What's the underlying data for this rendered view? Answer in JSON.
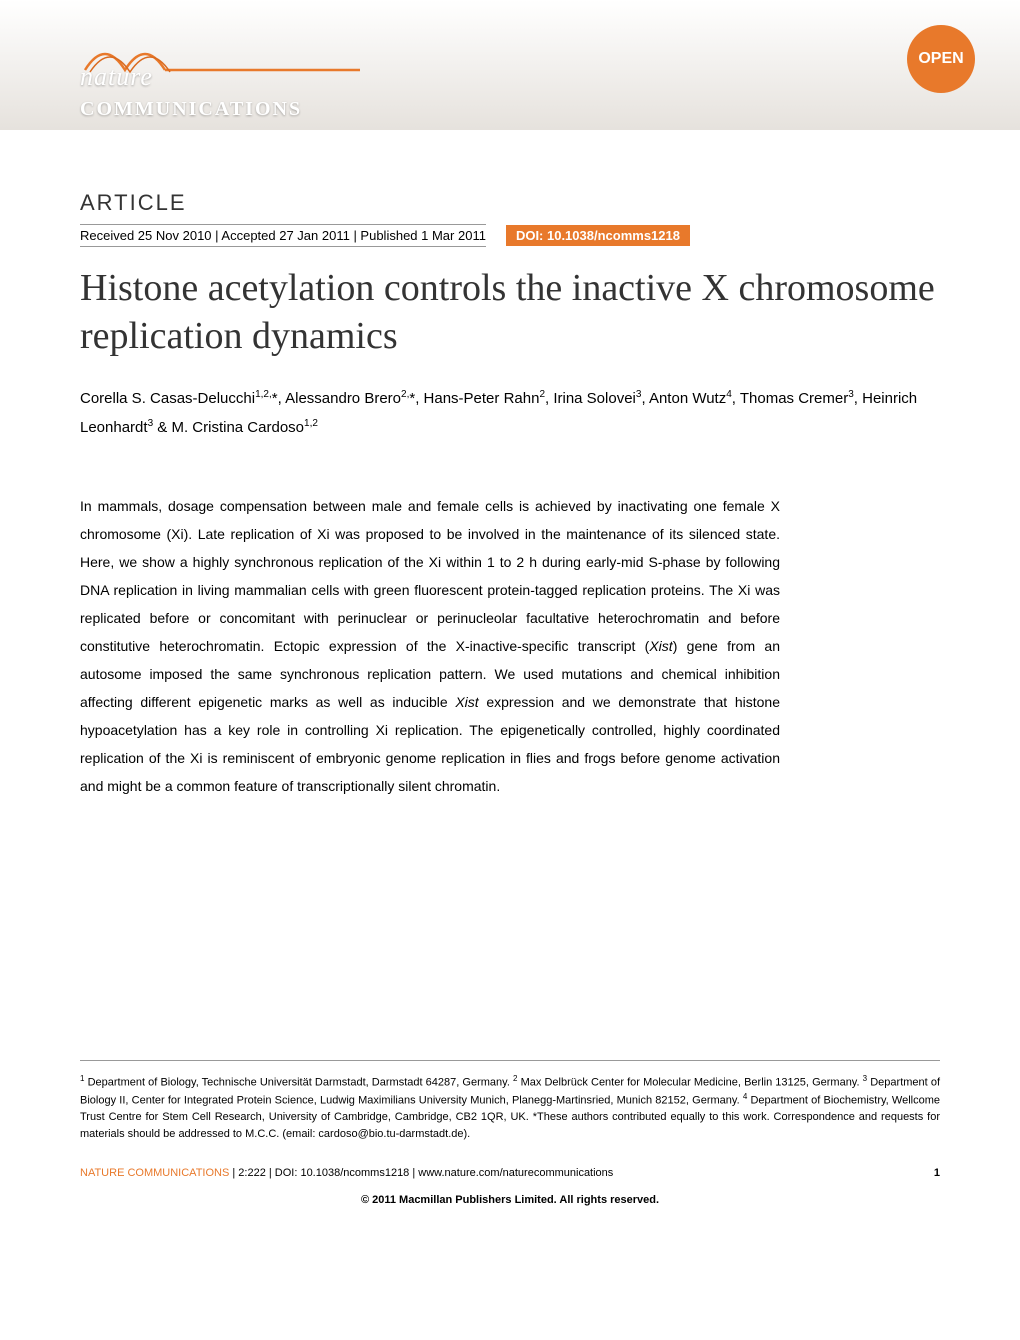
{
  "header": {
    "journal_nature": "nature",
    "journal_communications": "COMMUNICATIONS",
    "open_badge": "OPEN",
    "wave_color": "#e8792b",
    "background_gradient_top": "#ffffff",
    "background_gradient_bottom": "#e6e2dd"
  },
  "article": {
    "label": "ARTICLE",
    "dates": "Received 25 Nov 2010 | Accepted 27 Jan 2011 | Published 1 Mar 2011",
    "doi": "DOI: 10.1038/ncomms1218",
    "title": "Histone acetylation controls the inactive X chromosome replication dynamics",
    "authors_html": "Corella S. Casas-Delucchi<sup>1,2,</sup>*, Alessandro Brero<sup>2,</sup>*, Hans-Peter Rahn<sup>2</sup>, Irina Solovei<sup>3</sup>, Anton Wutz<sup>4</sup>, Thomas Cremer<sup>3</sup>, Heinrich Leonhardt<sup>3</sup> & M. Cristina Cardoso<sup>1,2</sup>",
    "abstract_html": "In mammals, dosage compensation between male and female cells is achieved by inactivating one female X chromosome (Xi). Late replication of Xi was proposed to be involved in the maintenance of its silenced state. Here, we show a highly synchronous replication of the Xi within 1 to 2 h during early-mid S-phase by following DNA replication in living mammalian cells with green fluorescent protein-tagged replication proteins. The Xi was replicated before or concomitant with perinuclear or perinucleolar facultative heterochromatin and before constitutive heterochromatin. Ectopic expression of the X-inactive-specific transcript (<em>Xist</em>) gene from an autosome imposed the same synchronous replication pattern. We used mutations and chemical inhibition affecting different epigenetic marks as well as inducible <em>Xist</em> expression and we demonstrate that histone hypoacetylation has a key role in controlling Xi replication. The epigenetically controlled, highly coordinated replication of the Xi is reminiscent of embryonic genome replication in flies and frogs before genome activation and might be a common feature of transcriptionally silent chromatin."
  },
  "footer": {
    "affiliations_html": "<sup>1</sup> Department of Biology, Technische Universität Darmstadt, Darmstadt 64287, Germany. <sup>2</sup> Max Delbrück Center for Molecular Medicine, Berlin 13125, Germany. <sup>3</sup> Department of Biology II, Center for Integrated Protein Science, Ludwig Maximilians University Munich, Planegg-Martinsried, Munich 82152, Germany. <sup>4</sup> Department of Biochemistry, Wellcome Trust Centre for Stem Cell Research, University of Cambridge, Cambridge, CB2 1QR, UK. *These authors contributed equally to this work. Correspondence and requests for materials should be addressed to M.C.C. (email: cardoso@bio.tu-darmstadt.de).",
    "journal_ref": "NATURE COMMUNICATIONS",
    "citation_details": " | 2:222 | DOI: 10.1038/ncomms1218 | www.nature.com/naturecommunications",
    "page_number": "1",
    "copyright": "© 2011 Macmillan Publishers Limited. All rights reserved."
  },
  "styling": {
    "accent_color": "#e8792b",
    "text_color": "#000000",
    "title_color": "#333333",
    "background_color": "#ffffff",
    "divider_color": "#999999",
    "title_fontsize": 38,
    "body_fontsize": 14,
    "footer_fontsize": 11
  }
}
